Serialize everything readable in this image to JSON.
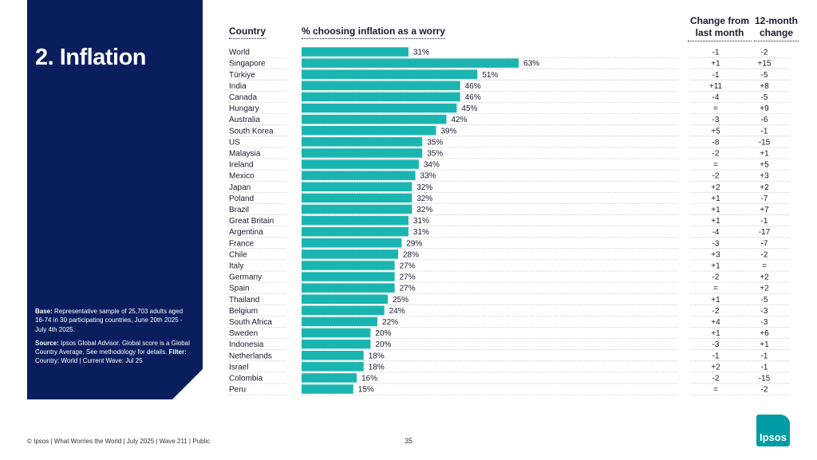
{
  "panel": {
    "title": "2. Inflation",
    "base_label": "Base:",
    "base_text": "Representative sample of 25,703 adults aged 16-74 in 30 participating countries, June 20th 2025 - July 4th 2025.",
    "source_label": "Source:",
    "source_text": "Ipsos Global Advisor. Global score is a Global Country Average. See methodology for details.",
    "filter_label": "Filter:",
    "filter_text": "Country: World | Current Wave: Jul 25"
  },
  "headers": {
    "country": "Country",
    "bar": "% choosing inflation as a worry",
    "change_month_1": "Change from",
    "change_month_2": "last month",
    "change_year_1": "12-month",
    "change_year_2": "change"
  },
  "footer": {
    "text": "© Ipsos | What Worries the World | July 2025 | Wave 211 | Public",
    "page": "35"
  },
  "logo": {
    "text": "Ipsos"
  },
  "colors": {
    "bar": "#1ab5b0",
    "panel": "#0a1e5e",
    "logo": "#009ca6"
  },
  "chart_data": {
    "type": "bar",
    "orientation": "horizontal",
    "xlim": [
      0,
      100
    ],
    "value_suffix": "%",
    "categories": [
      "World",
      "Singapore",
      "Türkiye",
      "India",
      "Canada",
      "Hungary",
      "Australia",
      "South Korea",
      "US",
      "Malaysia",
      "Ireland",
      "Mexico",
      "Japan",
      "Poland",
      "Brazil",
      "Great Britain",
      "Argentina",
      "France",
      "Chile",
      "Italy",
      "Germany",
      "Spain",
      "Thailand",
      "Belgium",
      "South Africa",
      "Sweden",
      "Indonesia",
      "Netherlands",
      "Israel",
      "Colombia",
      "Peru"
    ],
    "values": [
      31,
      63,
      51,
      46,
      46,
      45,
      42,
      39,
      35,
      35,
      34,
      33,
      32,
      32,
      32,
      31,
      31,
      29,
      28,
      27,
      27,
      27,
      25,
      24,
      22,
      20,
      20,
      18,
      18,
      16,
      15
    ],
    "change_last_month": [
      "-1",
      "+1",
      "-1",
      "+11",
      "-4",
      "=",
      "-3",
      "+5",
      "-8",
      "-2",
      "=",
      "-2",
      "+2",
      "+1",
      "+1",
      "+1",
      "-4",
      "-3",
      "+3",
      "+1",
      "-2",
      "=",
      "+1",
      "-2",
      "+4",
      "+1",
      "-3",
      "-1",
      "+2",
      "-2",
      "="
    ],
    "change_12_month": [
      "-2",
      "+15",
      "-5",
      "+8",
      "-5",
      "+9",
      "-6",
      "-1",
      "-15",
      "+1",
      "+5",
      "+3",
      "+2",
      "-7",
      "+7",
      "-1",
      "-17",
      "-7",
      "-2",
      "=",
      "+2",
      "+2",
      "-5",
      "-3",
      "-3",
      "+6",
      "+1",
      "-1",
      "-1",
      "-15",
      "-2"
    ]
  }
}
